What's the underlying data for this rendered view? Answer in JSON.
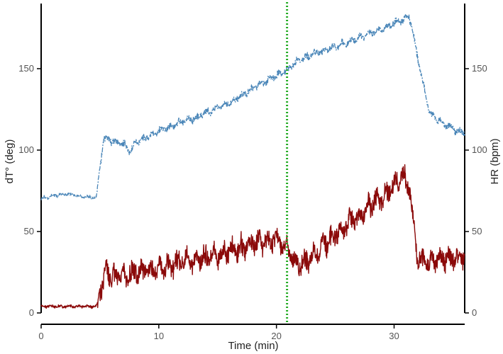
{
  "chart_data": {
    "type": "line",
    "xlabel": "Time (min)",
    "ylabel_left": "dT° (deg)",
    "ylabel_right": "HR (bpm)",
    "xlim": [
      0,
      36
    ],
    "ylim_left": [
      0,
      190
    ],
    "ylim_right": [
      0,
      190
    ],
    "x_ticks": [
      0,
      10,
      20,
      30
    ],
    "x_tick_labels": [
      "0",
      "10",
      "20",
      "30"
    ],
    "y_ticks_left": [
      0,
      50,
      100,
      150
    ],
    "y_tick_labels_left": [
      "0",
      "50",
      "100",
      "150"
    ],
    "y_ticks_right": [
      0,
      50,
      100,
      150
    ],
    "y_tick_labels_right": [
      "0",
      "50",
      "100",
      "150"
    ],
    "vline": {
      "x": 20.9,
      "color": "#22aa22",
      "style": "dotted"
    },
    "grid": false,
    "series": [
      {
        "axis": "right",
        "color": "#4a86b8",
        "style": "dashed",
        "x": [
          0,
          1,
          2,
          3,
          4,
          4.7,
          5.3,
          6,
          7,
          7.6,
          8,
          9,
          10,
          11,
          12,
          13,
          14,
          15,
          16,
          17,
          18,
          19,
          20,
          20.9,
          21.5,
          22,
          23,
          24,
          25,
          26,
          27,
          28,
          29,
          30,
          31,
          31.3,
          32,
          33,
          34,
          35,
          36
        ],
        "y": [
          70,
          72,
          73,
          72,
          71,
          71,
          107,
          106,
          104,
          99,
          105,
          108,
          112,
          114,
          118,
          119,
          123,
          126,
          129,
          133,
          138,
          142,
          146,
          149,
          153,
          156,
          158,
          161,
          164,
          166,
          169,
          172,
          174,
          178,
          181,
          182,
          157,
          123,
          117,
          113,
          110
        ]
      },
      {
        "axis": "left",
        "color": "#8b0a0a",
        "style": "solid",
        "x": [
          0,
          1,
          2,
          3,
          4,
          4.7,
          5.2,
          5.5,
          6,
          7,
          8,
          9,
          10,
          11,
          12,
          13,
          14,
          15,
          16,
          17,
          18,
          19,
          20,
          20.9,
          21.5,
          22,
          23,
          24,
          25,
          26,
          27,
          28,
          29,
          30,
          30.8,
          31.3,
          32,
          33,
          34,
          35,
          36
        ],
        "y": [
          4,
          4,
          4,
          4,
          4,
          4,
          17,
          28,
          22,
          23,
          25,
          26,
          27,
          29,
          31,
          32,
          34,
          36,
          38,
          40,
          42,
          44,
          45,
          40,
          32,
          30,
          35,
          42,
          48,
          54,
          60,
          66,
          71,
          78,
          85,
          78,
          33,
          32,
          33,
          34,
          35
        ]
      }
    ]
  }
}
